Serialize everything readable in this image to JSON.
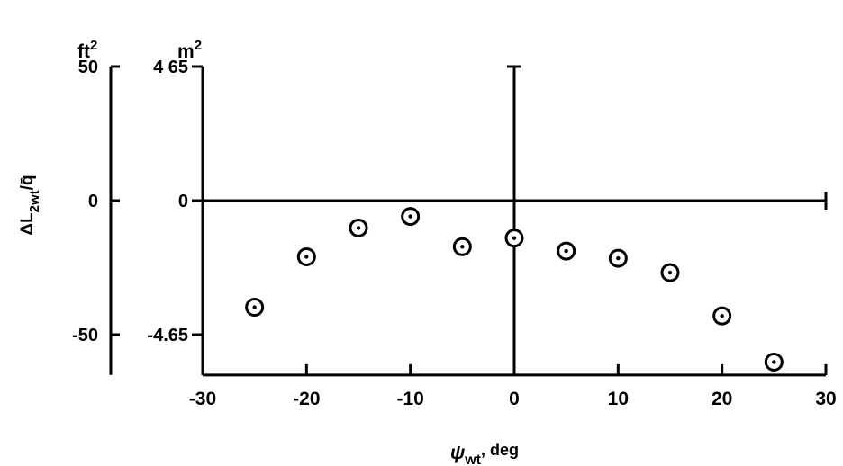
{
  "chart_data": {
    "type": "scatter",
    "x_axis": {
      "label_main": "ψ",
      "label_sub": "wt",
      "label_suffix": ", deg",
      "range": [
        -30,
        30
      ],
      "ticks": [
        -30,
        -20,
        -10,
        0,
        10,
        20,
        30
      ],
      "tick_labels": [
        "-30",
        "-20",
        "-10",
        "0",
        "10",
        "20",
        "30"
      ]
    },
    "y_axis_ft2": {
      "unit": "ft",
      "unit_sup": "2",
      "range": [
        -65,
        50
      ],
      "ticks": [
        50,
        0,
        -50
      ],
      "tick_labels": [
        "50",
        "0",
        "-50"
      ]
    },
    "y_axis_m2": {
      "unit": "m",
      "unit_sup": "2",
      "range": [
        -6.05,
        4.65
      ],
      "ticks": [
        4.65,
        0,
        -4.65
      ],
      "tick_labels": [
        "4 65",
        "0",
        "-4.65"
      ]
    },
    "y_label": {
      "prefix": "ΔL",
      "sub": "2wt",
      "suffix": "/q̄"
    },
    "series": [
      {
        "marker": "circle-dot",
        "x": [
          -25,
          -20,
          -15,
          -10,
          -5,
          0,
          5,
          10,
          15,
          20,
          25
        ],
        "y": [
          -3.7,
          -1.95,
          -0.95,
          -0.55,
          -1.6,
          -1.3,
          -1.75,
          -2.0,
          -2.5,
          -4.0,
          -5.6
        ]
      }
    ],
    "grid": false
  }
}
